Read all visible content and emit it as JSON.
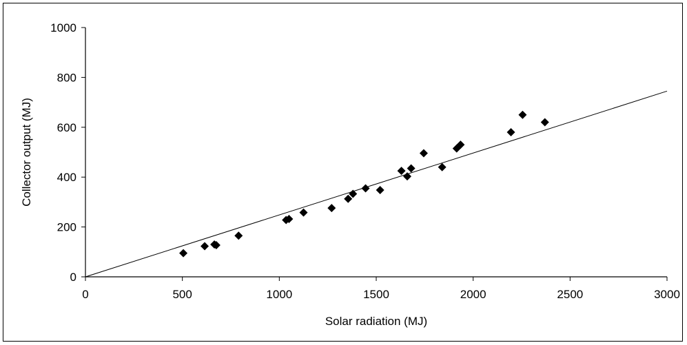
{
  "chart_data": {
    "type": "scatter",
    "title": "",
    "xlabel": "Solar radiation (MJ)",
    "ylabel": "Collector output (MJ)",
    "xlim": [
      0,
      3000
    ],
    "ylim": [
      0,
      1000
    ],
    "x_ticks": [
      0,
      500,
      1000,
      1500,
      2000,
      2500,
      3000
    ],
    "y_ticks": [
      0,
      200,
      400,
      600,
      800,
      1000
    ],
    "grid": false,
    "legend": "none",
    "series": [
      {
        "marker": "diamond",
        "color": "#000000",
        "points": [
          {
            "x": 505,
            "y": 95
          },
          {
            "x": 615,
            "y": 123
          },
          {
            "x": 665,
            "y": 130
          },
          {
            "x": 675,
            "y": 127
          },
          {
            "x": 790,
            "y": 165
          },
          {
            "x": 1035,
            "y": 228
          },
          {
            "x": 1050,
            "y": 232
          },
          {
            "x": 1125,
            "y": 258
          },
          {
            "x": 1270,
            "y": 276
          },
          {
            "x": 1355,
            "y": 313
          },
          {
            "x": 1380,
            "y": 333
          },
          {
            "x": 1445,
            "y": 355
          },
          {
            "x": 1520,
            "y": 348
          },
          {
            "x": 1630,
            "y": 425
          },
          {
            "x": 1660,
            "y": 403
          },
          {
            "x": 1680,
            "y": 435
          },
          {
            "x": 1745,
            "y": 496
          },
          {
            "x": 1840,
            "y": 440
          },
          {
            "x": 1915,
            "y": 515
          },
          {
            "x": 1935,
            "y": 530
          },
          {
            "x": 2195,
            "y": 580
          },
          {
            "x": 2255,
            "y": 650
          },
          {
            "x": 2370,
            "y": 620
          }
        ]
      }
    ],
    "trendline": {
      "type": "linear",
      "color": "#000000",
      "from": {
        "x": 0,
        "y": 0
      },
      "to": {
        "x": 3000,
        "y": 745
      }
    }
  }
}
